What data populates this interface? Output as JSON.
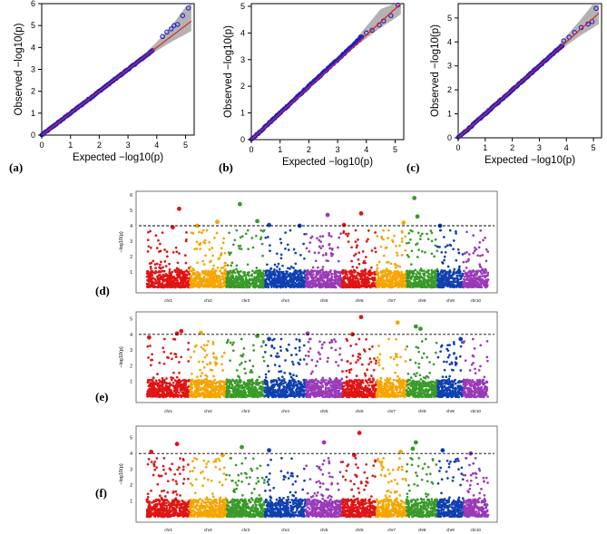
{
  "figure": {
    "panel_labels": [
      "(a)",
      "(b)",
      "(c)",
      "(d)",
      "(e)",
      "(f)"
    ]
  },
  "colors": {
    "points": "#1f1fcc",
    "ref_line": "#dd2222",
    "band": "#9a9a9a",
    "threshold": "#000000",
    "chr": [
      "#e01414",
      "#f5a500",
      "#3a9a2a",
      "#1040b0",
      "#9a3ab8",
      "#e01414",
      "#f5a500",
      "#3a9a2a",
      "#1040b0",
      "#9a3ab8"
    ]
  },
  "chart_data": [
    {
      "type": "scatter",
      "subtype": "qq",
      "panel": "(a)",
      "xlabel": "Expected  −log10(p)",
      "ylabel": "Observed  −log10(p)",
      "xlim": [
        0,
        5.3
      ],
      "ylim": [
        0,
        6
      ],
      "xticks": [
        0,
        1,
        2,
        3,
        4,
        5
      ],
      "yticks": [
        0,
        1,
        2,
        3,
        4,
        5,
        6
      ],
      "ref_line": [
        [
          0,
          0
        ],
        [
          5.2,
          5.2
        ]
      ],
      "tail_points": [
        [
          4.2,
          4.5
        ],
        [
          4.35,
          4.7
        ],
        [
          4.5,
          4.85
        ],
        [
          4.6,
          5.0
        ],
        [
          4.72,
          5.05
        ],
        [
          4.9,
          5.45
        ],
        [
          5.1,
          5.8
        ]
      ],
      "band_upper": [
        [
          3.5,
          3.6
        ],
        [
          4.0,
          4.25
        ],
        [
          4.5,
          4.95
        ],
        [
          5.0,
          5.85
        ],
        [
          5.2,
          6.0
        ]
      ],
      "band_lower": [
        [
          3.5,
          3.45
        ],
        [
          4.0,
          3.85
        ],
        [
          4.5,
          4.25
        ],
        [
          5.0,
          4.6
        ],
        [
          5.2,
          4.75
        ]
      ]
    },
    {
      "type": "scatter",
      "subtype": "qq",
      "panel": "(b)",
      "xlabel": "Expected  −log10(p)",
      "ylabel": "Observed  −log10(p)",
      "xlim": [
        0,
        5.3
      ],
      "ylim": [
        0,
        5.1
      ],
      "xticks": [
        0,
        1,
        2,
        3,
        4,
        5
      ],
      "yticks": [
        0,
        1,
        2,
        3,
        4,
        5
      ],
      "ref_line": [
        [
          0,
          0
        ],
        [
          5.2,
          5.2
        ]
      ],
      "tail_points": [
        [
          3.8,
          3.85
        ],
        [
          4.0,
          4.0
        ],
        [
          4.2,
          4.1
        ],
        [
          4.45,
          4.3
        ],
        [
          4.6,
          4.45
        ],
        [
          4.85,
          4.65
        ],
        [
          5.1,
          5.05
        ]
      ],
      "band_upper": [
        [
          3.5,
          3.6
        ],
        [
          4.0,
          4.25
        ],
        [
          4.5,
          4.9
        ],
        [
          5.0,
          5.7
        ],
        [
          5.2,
          5.9
        ]
      ],
      "band_lower": [
        [
          3.5,
          3.4
        ],
        [
          4.0,
          3.8
        ],
        [
          4.5,
          4.2
        ],
        [
          5.0,
          4.55
        ],
        [
          5.2,
          4.7
        ]
      ]
    },
    {
      "type": "scatter",
      "subtype": "qq",
      "panel": "(c)",
      "xlabel": "Expected  −log10(p)",
      "ylabel": "Observed  −log10(p)",
      "xlim": [
        0,
        5.3
      ],
      "ylim": [
        0,
        5.6
      ],
      "xticks": [
        0,
        1,
        2,
        3,
        4,
        5
      ],
      "yticks": [
        0,
        1,
        2,
        3,
        4,
        5
      ],
      "ref_line": [
        [
          0,
          0
        ],
        [
          5.2,
          5.2
        ]
      ],
      "tail_points": [
        [
          3.9,
          4.05
        ],
        [
          4.1,
          4.2
        ],
        [
          4.3,
          4.4
        ],
        [
          4.55,
          4.6
        ],
        [
          4.8,
          4.75
        ],
        [
          4.95,
          4.85
        ],
        [
          5.1,
          5.4
        ]
      ],
      "band_upper": [
        [
          3.5,
          3.6
        ],
        [
          4.0,
          4.25
        ],
        [
          4.5,
          4.9
        ],
        [
          5.0,
          5.6
        ],
        [
          5.2,
          5.8
        ]
      ],
      "band_lower": [
        [
          3.5,
          3.45
        ],
        [
          4.0,
          3.85
        ],
        [
          4.5,
          4.25
        ],
        [
          5.0,
          4.6
        ],
        [
          5.2,
          4.75
        ]
      ]
    },
    {
      "type": "scatter",
      "subtype": "manhattan",
      "panel": "(d)",
      "ylabel": "−log10(p)",
      "ylim": [
        0,
        6
      ],
      "yticks": [
        1,
        2,
        3,
        4,
        5,
        6
      ],
      "threshold": 4,
      "chromosomes": [
        "chr1",
        "chr2",
        "chr3",
        "chr4",
        "chr5",
        "chr6",
        "chr7",
        "chr8",
        "chr9",
        "chr10"
      ],
      "chr_sizes": [
        1.0,
        0.85,
        0.9,
        0.95,
        0.85,
        0.8,
        0.7,
        0.72,
        0.6,
        0.58
      ],
      "peaks": [
        [
          1,
          0.75,
          5.1
        ],
        [
          1,
          0.6,
          3.9
        ],
        [
          2,
          0.2,
          4.0
        ],
        [
          2,
          0.75,
          4.25
        ],
        [
          3,
          0.35,
          5.4
        ],
        [
          3,
          0.8,
          4.3
        ],
        [
          4,
          0.1,
          4.05
        ],
        [
          4,
          0.85,
          4.0
        ],
        [
          5,
          0.6,
          4.7
        ],
        [
          6,
          0.55,
          4.8
        ],
        [
          6,
          0.05,
          4.05
        ],
        [
          7,
          0.9,
          4.2
        ],
        [
          8,
          0.25,
          5.8
        ],
        [
          8,
          0.35,
          4.6
        ],
        [
          9,
          0.1,
          4.0
        ]
      ]
    },
    {
      "type": "scatter",
      "subtype": "manhattan",
      "panel": "(e)",
      "ylabel": "−log10(p)",
      "ylim": [
        0,
        5.2
      ],
      "yticks": [
        1,
        2,
        3,
        4,
        5
      ],
      "threshold": 4,
      "chromosomes": [
        "chr1",
        "chr2",
        "chr3",
        "chr4",
        "chr5",
        "chr6",
        "chr7",
        "chr8",
        "chr9",
        "chr10"
      ],
      "chr_sizes": [
        1.0,
        0.85,
        0.9,
        0.95,
        0.85,
        0.8,
        0.7,
        0.72,
        0.6,
        0.58
      ],
      "peaks": [
        [
          1,
          0.8,
          4.2
        ],
        [
          1,
          0.7,
          4.05
        ],
        [
          1,
          0.05,
          3.8
        ],
        [
          2,
          0.3,
          4.1
        ],
        [
          3,
          0.8,
          3.9
        ],
        [
          4,
          0.1,
          3.7
        ],
        [
          5,
          0.05,
          4.05
        ],
        [
          6,
          0.55,
          5.1
        ],
        [
          6,
          0.3,
          4.0
        ],
        [
          7,
          0.7,
          4.75
        ],
        [
          8,
          0.3,
          4.5
        ],
        [
          8,
          0.45,
          4.35
        ],
        [
          9,
          0.9,
          3.7
        ]
      ]
    },
    {
      "type": "scatter",
      "subtype": "manhattan",
      "panel": "(f)",
      "ylabel": "−log10(p)",
      "ylim": [
        0,
        5.5
      ],
      "yticks": [
        1,
        2,
        3,
        4,
        5
      ],
      "threshold": 4,
      "chromosomes": [
        "chr1",
        "chr2",
        "chr3",
        "chr4",
        "chr5",
        "chr6",
        "chr7",
        "chr8",
        "chr9",
        "chr10"
      ],
      "chr_sizes": [
        1.0,
        0.85,
        0.9,
        0.95,
        0.85,
        0.8,
        0.7,
        0.72,
        0.6,
        0.58
      ],
      "peaks": [
        [
          1,
          0.7,
          4.6
        ],
        [
          1,
          0.1,
          4.1
        ],
        [
          2,
          0.9,
          3.9
        ],
        [
          3,
          0.4,
          4.4
        ],
        [
          4,
          0.1,
          4.2
        ],
        [
          5,
          0.5,
          4.7
        ],
        [
          6,
          0.5,
          5.3
        ],
        [
          6,
          0.35,
          3.9
        ],
        [
          7,
          0.8,
          4.1
        ],
        [
          8,
          0.3,
          4.7
        ],
        [
          8,
          0.2,
          4.3
        ],
        [
          9,
          0.2,
          4.2
        ],
        [
          10,
          0.3,
          4.0
        ]
      ]
    }
  ]
}
